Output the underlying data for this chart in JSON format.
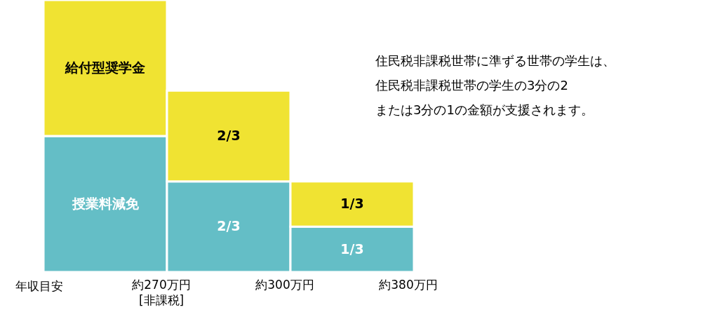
{
  "chart_data": {
    "type": "bar",
    "stacked": true,
    "xlabel": "年収目安",
    "categories": [
      "約270万円\n[非課税]",
      "約300万円",
      "約380万円"
    ],
    "series": [
      {
        "name": "授業料減免",
        "color": "#64bec6",
        "values": [
          1,
          0.6667,
          0.3333
        ],
        "value_labels": [
          null,
          "2/3",
          "1/3"
        ]
      },
      {
        "name": "給付型奨学金",
        "color": "#f0e332",
        "values": [
          1,
          0.6667,
          0.3333
        ],
        "value_labels": [
          null,
          "2/3",
          "1/3"
        ]
      }
    ],
    "annotations": [
      "住民税非課税世帯に準ずる世帯の学生は、",
      "住民税非課税世帯の学生の3分の2",
      "または3分の1の金額が支援されます。"
    ]
  }
}
